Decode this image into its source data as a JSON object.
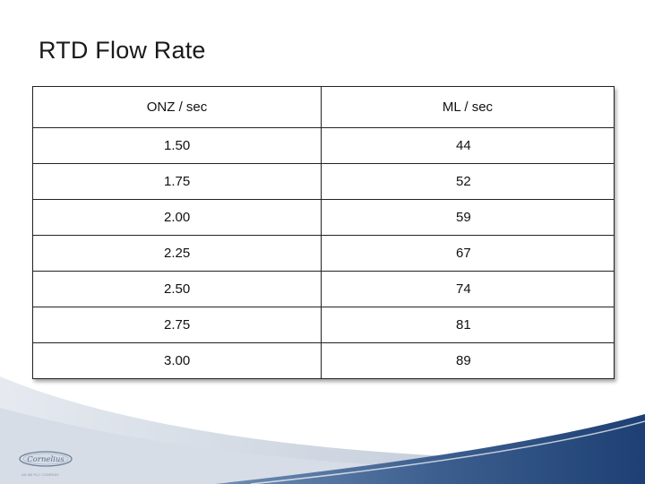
{
  "slide": {
    "title": "RTD Flow Rate"
  },
  "table": {
    "headers": [
      "ONZ / sec",
      "ML / sec"
    ],
    "rows": [
      [
        "1.50",
        "44"
      ],
      [
        "1.75",
        "52"
      ],
      [
        "2.00",
        "59"
      ],
      [
        "2.25",
        "67"
      ],
      [
        "2.50",
        "74"
      ],
      [
        "2.75",
        "81"
      ],
      [
        "3.00",
        "89"
      ]
    ]
  },
  "footer": {
    "logo_text": "Cornelius",
    "logo_subtext": "AN IMI PLC COMPANY",
    "colors": {
      "band_dark": "#1d3f73",
      "band_mid": "#4d6f9c",
      "swoosh_light": "#c9d1dc"
    }
  }
}
